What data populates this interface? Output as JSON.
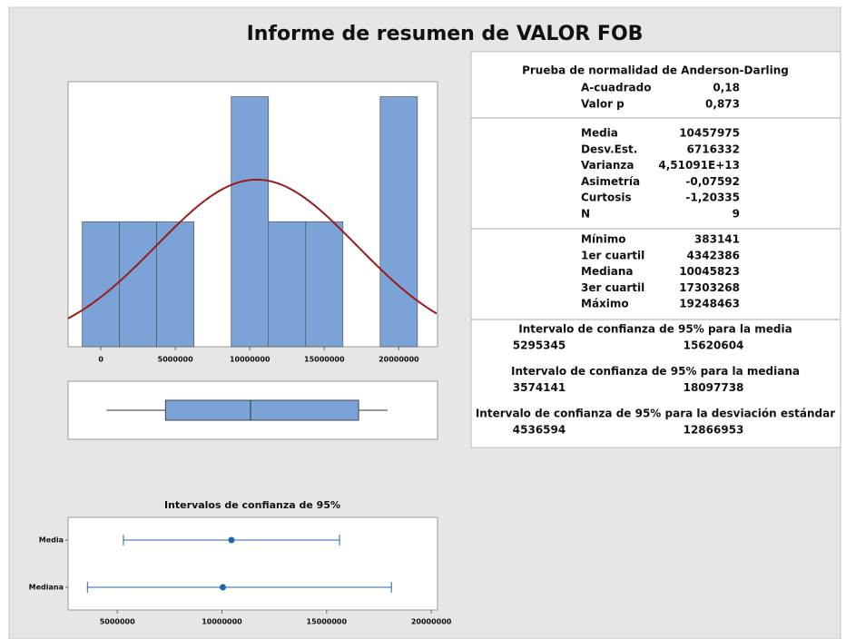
{
  "title": "Informe de resumen de VALOR FOB",
  "chart_data": [
    {
      "type": "histogram",
      "bins": [
        -1250000,
        1250000,
        3750000,
        6250000,
        8750000,
        11250000,
        13750000,
        16250000,
        18750000,
        21250000
      ],
      "counts": [
        1,
        1,
        1,
        0,
        2,
        1,
        1,
        0,
        2
      ],
      "color": "#7ba3d8",
      "fit_color": "#9b1b1b",
      "xlim": [
        -2200000,
        22600000
      ],
      "ylim": [
        0,
        2.12
      ],
      "xticks": [
        0,
        5000000,
        10000000,
        15000000,
        20000000
      ]
    },
    {
      "type": "boxplot",
      "color": "#7ba3d8",
      "xlim": [
        -2200000,
        22600000
      ]
    },
    {
      "type": "interval",
      "title": "Intervalos de confianza de 95%",
      "categories": [
        "Media",
        "Mediana"
      ],
      "color": "#1f64ad",
      "xlim": [
        2650000,
        20300000
      ],
      "xticks": [
        5000000,
        10000000,
        15000000,
        20000000
      ]
    }
  ],
  "stats": {
    "normality": {
      "title": "Prueba de normalidad de Anderson-Darling",
      "rows": [
        [
          "A-cuadrado",
          "0,18"
        ],
        [
          "Valor p",
          "0,873"
        ]
      ]
    },
    "moments": [
      [
        "Media",
        10457975
      ],
      [
        "Desv.Est.",
        6716332
      ],
      [
        "Varianza",
        "4,51091E+13"
      ],
      [
        "Asimetría",
        "-0,07592"
      ],
      [
        "Curtosis",
        "-1,20335"
      ],
      [
        "N",
        9
      ]
    ],
    "quantiles": [
      [
        "Mínimo",
        383141
      ],
      [
        "1er cuartil",
        4342386
      ],
      [
        "Mediana",
        10045823
      ],
      [
        "3er cuartil",
        17303268
      ],
      [
        "Máximo",
        19248463
      ]
    ],
    "ci": [
      {
        "title": "Intervalo de confianza de 95% para la media",
        "low": 5295345,
        "high": 15620604
      },
      {
        "title": "Intervalo de confianza de 95% para la mediana",
        "low": 3574141,
        "high": 18097738
      },
      {
        "title": "Intervalo de confianza de 95% para la desviación estándar",
        "low": 4536594,
        "high": 12866953
      }
    ]
  }
}
